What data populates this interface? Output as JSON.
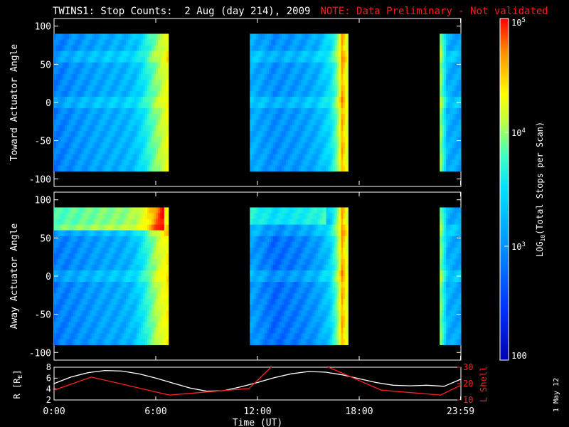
{
  "title": {
    "main": "TWINS1: Stop Counts:  2 Aug (day 214), 2009",
    "note": "NOTE: Data Preliminary - Not validated"
  },
  "footer": {
    "date_stamp": "1 May 12"
  },
  "chart_data": [
    {
      "type": "heatmap",
      "panel": "top",
      "ylabel": "Toward Actuator Angle",
      "ylim": [
        -110,
        110
      ],
      "yticks": [
        "100",
        "50",
        "0",
        "-50",
        "-100"
      ],
      "data_y_range": [
        -90,
        90
      ],
      "data_blocks_hours": [
        [
          0,
          6.75
        ],
        [
          11.55,
          17.35
        ],
        [
          22.75,
          24
        ]
      ],
      "time_columns": [
        {
          "t": 0.0,
          "v": 0.22
        },
        {
          "t": 1.0,
          "v": 0.25
        },
        {
          "t": 2.0,
          "v": 0.27
        },
        {
          "t": 3.0,
          "v": 0.29
        },
        {
          "t": 4.0,
          "v": 0.3
        },
        {
          "t": 4.8,
          "v": 0.33
        },
        {
          "t": 5.3,
          "v": 0.4
        },
        {
          "t": 5.8,
          "v": 0.52
        },
        {
          "t": 6.3,
          "v": 0.62
        },
        {
          "t": 6.7,
          "v": 0.72
        },
        {
          "t": 11.55,
          "v": 0.3
        },
        {
          "t": 13.0,
          "v": 0.25
        },
        {
          "t": 14.5,
          "v": 0.27
        },
        {
          "t": 15.5,
          "v": 0.3
        },
        {
          "t": 16.3,
          "v": 0.38
        },
        {
          "t": 16.7,
          "v": 0.55
        },
        {
          "t": 17.0,
          "v": 0.85
        },
        {
          "t": 17.35,
          "v": 0.65
        },
        {
          "t": 22.75,
          "v": 0.62
        },
        {
          "t": 23.2,
          "v": 0.3
        },
        {
          "t": 24.0,
          "v": 0.28
        }
      ]
    },
    {
      "type": "heatmap",
      "panel": "bottom",
      "ylabel": "Away Actuator Angle",
      "ylim": [
        -110,
        110
      ],
      "yticks": [
        "100",
        "50",
        "0",
        "-50",
        "-100"
      ],
      "data_y_range": [
        -90,
        90
      ],
      "data_blocks_hours": [
        [
          0,
          6.75
        ],
        [
          11.55,
          17.35
        ],
        [
          22.75,
          24
        ]
      ],
      "time_columns": [
        {
          "t": 0.0,
          "v": 0.22
        },
        {
          "t": 1.0,
          "v": 0.24
        },
        {
          "t": 2.0,
          "v": 0.26
        },
        {
          "t": 3.0,
          "v": 0.28
        },
        {
          "t": 4.0,
          "v": 0.29
        },
        {
          "t": 4.8,
          "v": 0.33
        },
        {
          "t": 5.3,
          "v": 0.42
        },
        {
          "t": 5.8,
          "v": 0.55
        },
        {
          "t": 6.3,
          "v": 0.68
        },
        {
          "t": 6.7,
          "v": 0.75
        },
        {
          "t": 11.55,
          "v": 0.28
        },
        {
          "t": 13.0,
          "v": 0.2
        },
        {
          "t": 14.5,
          "v": 0.23
        },
        {
          "t": 15.5,
          "v": 0.27
        },
        {
          "t": 16.3,
          "v": 0.35
        },
        {
          "t": 16.7,
          "v": 0.55
        },
        {
          "t": 17.0,
          "v": 0.85
        },
        {
          "t": 17.35,
          "v": 0.65
        },
        {
          "t": 22.75,
          "v": 0.6
        },
        {
          "t": 23.2,
          "v": 0.3
        },
        {
          "t": 24.0,
          "v": 0.28
        }
      ]
    },
    {
      "type": "line",
      "panel": "orbit",
      "xlabel": "Time (UT)",
      "xlim": [
        0,
        24
      ],
      "xticks": [
        {
          "t": 0,
          "label": "0:00"
        },
        {
          "t": 6,
          "label": "6:00"
        },
        {
          "t": 12,
          "label": "12:00"
        },
        {
          "t": 18,
          "label": "18:00"
        },
        {
          "t": 23.98,
          "label": "23:59"
        }
      ],
      "ylabel_left": "R [R",
      "ylabel_left_sub": "E",
      "ylabel_left_end": "]",
      "ylim_left": [
        2,
        8
      ],
      "yticks_left": [
        "8",
        "6",
        "4",
        "2"
      ],
      "ylabel_right": "L Shell",
      "ylim_right": [
        10,
        30
      ],
      "yticks_right": [
        "30",
        "20",
        "10"
      ],
      "series": [
        {
          "axis": "left",
          "color": "#ffffff",
          "x": [
            0,
            1,
            2,
            3,
            4,
            5,
            6,
            7,
            8,
            9,
            10,
            11,
            12,
            13,
            14,
            15,
            16,
            17,
            18,
            19,
            20,
            21,
            22,
            23,
            24
          ],
          "y": [
            5.0,
            6.2,
            7.0,
            7.4,
            7.3,
            6.8,
            6.0,
            5.1,
            4.2,
            3.6,
            3.7,
            4.4,
            5.2,
            6.1,
            6.8,
            7.2,
            7.1,
            6.6,
            5.9,
            5.2,
            4.7,
            4.6,
            4.7,
            4.5,
            5.8
          ]
        },
        {
          "axis": "right",
          "color": "#ff2020",
          "x": [
            0,
            2.2,
            6.8,
            11.5,
            12.8,
            14.7,
            16.2,
            19.3,
            22.8,
            24
          ],
          "y": [
            16,
            24,
            13,
            17,
            30,
            40,
            30,
            16,
            13,
            19
          ]
        }
      ]
    }
  ],
  "colorbar": {
    "label_main": "LOG",
    "label_sub": "10",
    "label_rest": "(Total Stops per Scan)",
    "scale": "log",
    "range": [
      100,
      100000
    ],
    "ticks": [
      {
        "base": "100",
        "exp": ""
      },
      {
        "base": "10",
        "exp": "3"
      },
      {
        "base": "10",
        "exp": "4"
      },
      {
        "base": "10",
        "exp": "5"
      }
    ],
    "colors": [
      "#0000b0",
      "#0030ff",
      "#0090ff",
      "#00e0ff",
      "#40ffc0",
      "#c0ff40",
      "#ffff00",
      "#ff9000",
      "#ff0000"
    ]
  }
}
